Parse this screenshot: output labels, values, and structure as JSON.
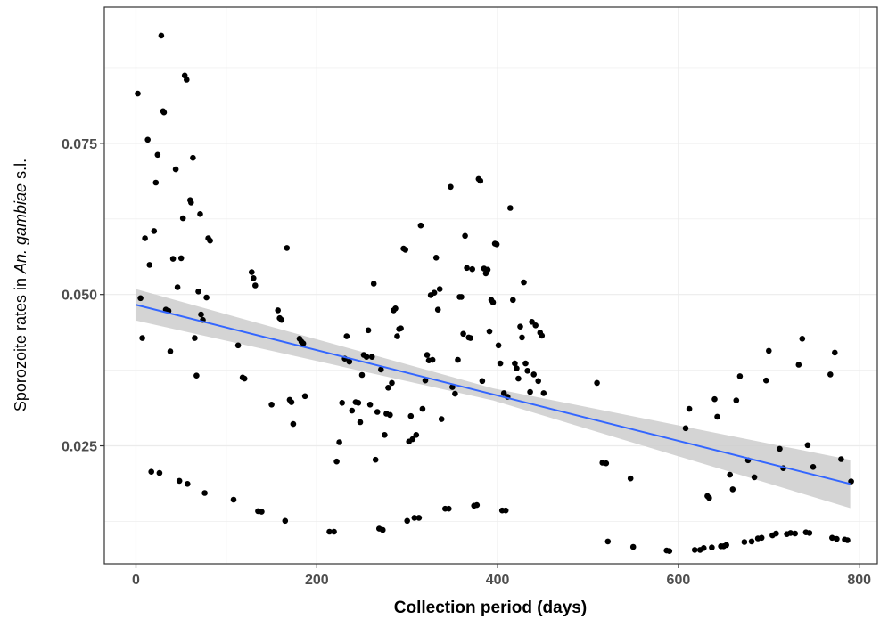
{
  "chart_data": {
    "type": "scatter",
    "xlabel": "Collection period (days)",
    "ylabel": {
      "prefix": "Sporozoite rates in ",
      "italic": "An. gambiae",
      "suffix": " s.l."
    },
    "xlim": [
      -35,
      820
    ],
    "ylim": [
      0.0055,
      0.0975
    ],
    "x_ticks": [
      0,
      200,
      400,
      600,
      800
    ],
    "x_tick_labels": [
      "0",
      "200",
      "400",
      "600",
      "800"
    ],
    "y_ticks": [
      0.025,
      0.05,
      0.075
    ],
    "y_tick_labels": [
      "0.025",
      "0.050",
      "0.075"
    ],
    "grid": true,
    "legend": "none",
    "colors": {
      "points": "#000000",
      "trend": "#3366ff",
      "band": "#cccccc",
      "grid": "#ebebeb",
      "frame": "#333333"
    },
    "trend": {
      "x": [
        0,
        790
      ],
      "y": [
        0.0483,
        0.0187
      ],
      "ci_lower": [
        0.0457,
        0.0147
      ],
      "ci_upper": [
        0.0509,
        0.0227
      ],
      "ci_mid": {
        "x": 395,
        "lower": 0.0325,
        "upper": 0.0345
      }
    },
    "series": [
      {
        "points": [
          [
            2,
            0.0832
          ],
          [
            5,
            0.0494
          ],
          [
            7,
            0.0428
          ],
          [
            10,
            0.0593
          ],
          [
            13,
            0.0756
          ],
          [
            15,
            0.0549
          ],
          [
            17,
            0.0207
          ],
          [
            20,
            0.0605
          ],
          [
            22,
            0.0685
          ],
          [
            24,
            0.0731
          ],
          [
            26,
            0.0205
          ],
          [
            28,
            0.0928
          ],
          [
            30,
            0.0803
          ],
          [
            31,
            0.0801
          ],
          [
            33,
            0.0475
          ],
          [
            36,
            0.0473
          ],
          [
            38,
            0.0406
          ],
          [
            41,
            0.0559
          ],
          [
            44,
            0.0707
          ],
          [
            46,
            0.0512
          ],
          [
            48,
            0.0192
          ],
          [
            50,
            0.056
          ],
          [
            52,
            0.0626
          ],
          [
            54,
            0.0862
          ],
          [
            56,
            0.0855
          ],
          [
            57,
            0.0187
          ],
          [
            60,
            0.0656
          ],
          [
            61,
            0.0652
          ],
          [
            63,
            0.0726
          ],
          [
            65,
            0.0428
          ],
          [
            67,
            0.0366
          ],
          [
            69,
            0.0505
          ],
          [
            71,
            0.0633
          ],
          [
            72,
            0.0467
          ],
          [
            74,
            0.0458
          ],
          [
            76,
            0.0172
          ],
          [
            78,
            0.0495
          ],
          [
            80,
            0.0593
          ],
          [
            82,
            0.0589
          ],
          [
            108,
            0.0161
          ],
          [
            113,
            0.0416
          ],
          [
            118,
            0.0363
          ],
          [
            120,
            0.0361
          ],
          [
            128,
            0.0537
          ],
          [
            130,
            0.0527
          ],
          [
            132,
            0.0515
          ],
          [
            135,
            0.0142
          ],
          [
            139,
            0.0141
          ],
          [
            150,
            0.0318
          ],
          [
            157,
            0.0474
          ],
          [
            159,
            0.0461
          ],
          [
            161,
            0.0458
          ],
          [
            165,
            0.0126
          ],
          [
            167,
            0.0577
          ],
          [
            170,
            0.0326
          ],
          [
            172,
            0.0322
          ],
          [
            174,
            0.0286
          ],
          [
            181,
            0.0427
          ],
          [
            183,
            0.0422
          ],
          [
            185,
            0.0419
          ],
          [
            187,
            0.0332
          ],
          [
            214,
            0.0108
          ],
          [
            219,
            0.0108
          ],
          [
            222,
            0.0224
          ],
          [
            225,
            0.0256
          ],
          [
            228,
            0.0321
          ],
          [
            231,
            0.0394
          ],
          [
            233,
            0.0431
          ],
          [
            236,
            0.0389
          ],
          [
            239,
            0.0308
          ],
          [
            243,
            0.0322
          ],
          [
            246,
            0.0321
          ],
          [
            248,
            0.0289
          ],
          [
            250,
            0.0367
          ],
          [
            252,
            0.04
          ],
          [
            255,
            0.0397
          ],
          [
            257,
            0.0441
          ],
          [
            259,
            0.0318
          ],
          [
            261,
            0.0397
          ],
          [
            263,
            0.0518
          ],
          [
            265,
            0.0227
          ],
          [
            267,
            0.0306
          ],
          [
            269,
            0.0113
          ],
          [
            271,
            0.0376
          ],
          [
            273,
            0.0111
          ],
          [
            275,
            0.0268
          ],
          [
            277,
            0.0303
          ],
          [
            279,
            0.0346
          ],
          [
            281,
            0.0301
          ],
          [
            283,
            0.0354
          ],
          [
            285,
            0.0474
          ],
          [
            287,
            0.0477
          ],
          [
            289,
            0.0431
          ],
          [
            291,
            0.0443
          ],
          [
            293,
            0.0444
          ],
          [
            296,
            0.0576
          ],
          [
            298,
            0.0574
          ],
          [
            300,
            0.0126
          ],
          [
            302,
            0.0257
          ],
          [
            304,
            0.0299
          ],
          [
            306,
            0.0261
          ],
          [
            308,
            0.0131
          ],
          [
            310,
            0.0268
          ],
          [
            313,
            0.0131
          ],
          [
            315,
            0.0614
          ],
          [
            317,
            0.0311
          ],
          [
            320,
            0.0358
          ],
          [
            322,
            0.04
          ],
          [
            324,
            0.0391
          ],
          [
            326,
            0.0499
          ],
          [
            328,
            0.0392
          ],
          [
            330,
            0.0503
          ],
          [
            332,
            0.0561
          ],
          [
            334,
            0.0475
          ],
          [
            336,
            0.0509
          ],
          [
            338,
            0.0294
          ],
          [
            342,
            0.0146
          ],
          [
            346,
            0.0146
          ],
          [
            348,
            0.0678
          ],
          [
            350,
            0.0347
          ],
          [
            353,
            0.0336
          ],
          [
            356,
            0.0392
          ],
          [
            358,
            0.0496
          ],
          [
            360,
            0.0496
          ],
          [
            362,
            0.0435
          ],
          [
            364,
            0.0597
          ],
          [
            366,
            0.0544
          ],
          [
            368,
            0.0429
          ],
          [
            370,
            0.0428
          ],
          [
            372,
            0.0542
          ],
          [
            374,
            0.0151
          ],
          [
            377,
            0.0152
          ],
          [
            379,
            0.0691
          ],
          [
            381,
            0.0688
          ],
          [
            383,
            0.0357
          ],
          [
            385,
            0.0543
          ],
          [
            387,
            0.0535
          ],
          [
            389,
            0.0541
          ],
          [
            391,
            0.0439
          ],
          [
            393,
            0.0491
          ],
          [
            395,
            0.0487
          ],
          [
            397,
            0.0584
          ],
          [
            399,
            0.0583
          ],
          [
            401,
            0.0416
          ],
          [
            403,
            0.0386
          ],
          [
            405,
            0.0143
          ],
          [
            407,
            0.0337
          ],
          [
            409,
            0.0143
          ],
          [
            411,
            0.0331
          ],
          [
            414,
            0.0643
          ],
          [
            417,
            0.0491
          ],
          [
            419,
            0.0386
          ],
          [
            421,
            0.0378
          ],
          [
            423,
            0.0361
          ],
          [
            425,
            0.0447
          ],
          [
            427,
            0.0429
          ],
          [
            429,
            0.052
          ],
          [
            431,
            0.0386
          ],
          [
            433,
            0.0374
          ],
          [
            436,
            0.0339
          ],
          [
            438,
            0.0455
          ],
          [
            440,
            0.0368
          ],
          [
            442,
            0.0449
          ],
          [
            445,
            0.0357
          ],
          [
            447,
            0.0437
          ],
          [
            449,
            0.0432
          ],
          [
            451,
            0.0337
          ],
          [
            510,
            0.0354
          ],
          [
            516,
            0.0222
          ],
          [
            520,
            0.0221
          ],
          [
            522,
            0.0092
          ],
          [
            547,
            0.0196
          ],
          [
            550,
            0.0083
          ],
          [
            587,
            0.0077
          ],
          [
            590,
            0.0076
          ],
          [
            608,
            0.0279
          ],
          [
            612,
            0.0311
          ],
          [
            618,
            0.0078
          ],
          [
            624,
            0.0078
          ],
          [
            628,
            0.0081
          ],
          [
            632,
            0.0167
          ],
          [
            634,
            0.0164
          ],
          [
            637,
            0.0082
          ],
          [
            640,
            0.0327
          ],
          [
            643,
            0.0298
          ],
          [
            647,
            0.0084
          ],
          [
            650,
            0.0084
          ],
          [
            653,
            0.0086
          ],
          [
            657,
            0.0202
          ],
          [
            660,
            0.0178
          ],
          [
            664,
            0.0325
          ],
          [
            668,
            0.0365
          ],
          [
            673,
            0.0091
          ],
          [
            677,
            0.0226
          ],
          [
            681,
            0.0092
          ],
          [
            684,
            0.0198
          ],
          [
            688,
            0.0097
          ],
          [
            692,
            0.0098
          ],
          [
            697,
            0.0358
          ],
          [
            700,
            0.0407
          ],
          [
            704,
            0.0102
          ],
          [
            708,
            0.0105
          ],
          [
            712,
            0.0245
          ],
          [
            716,
            0.0213
          ],
          [
            720,
            0.0104
          ],
          [
            724,
            0.0106
          ],
          [
            729,
            0.0105
          ],
          [
            733,
            0.0384
          ],
          [
            737,
            0.0427
          ],
          [
            741,
            0.0107
          ],
          [
            743,
            0.0251
          ],
          [
            745,
            0.0106
          ],
          [
            749,
            0.0215
          ],
          [
            768,
            0.0368
          ],
          [
            770,
            0.0098
          ],
          [
            773,
            0.0404
          ],
          [
            775,
            0.0096
          ],
          [
            780,
            0.0228
          ],
          [
            784,
            0.0095
          ],
          [
            787,
            0.0094
          ],
          [
            791,
            0.0191
          ]
        ]
      }
    ]
  }
}
